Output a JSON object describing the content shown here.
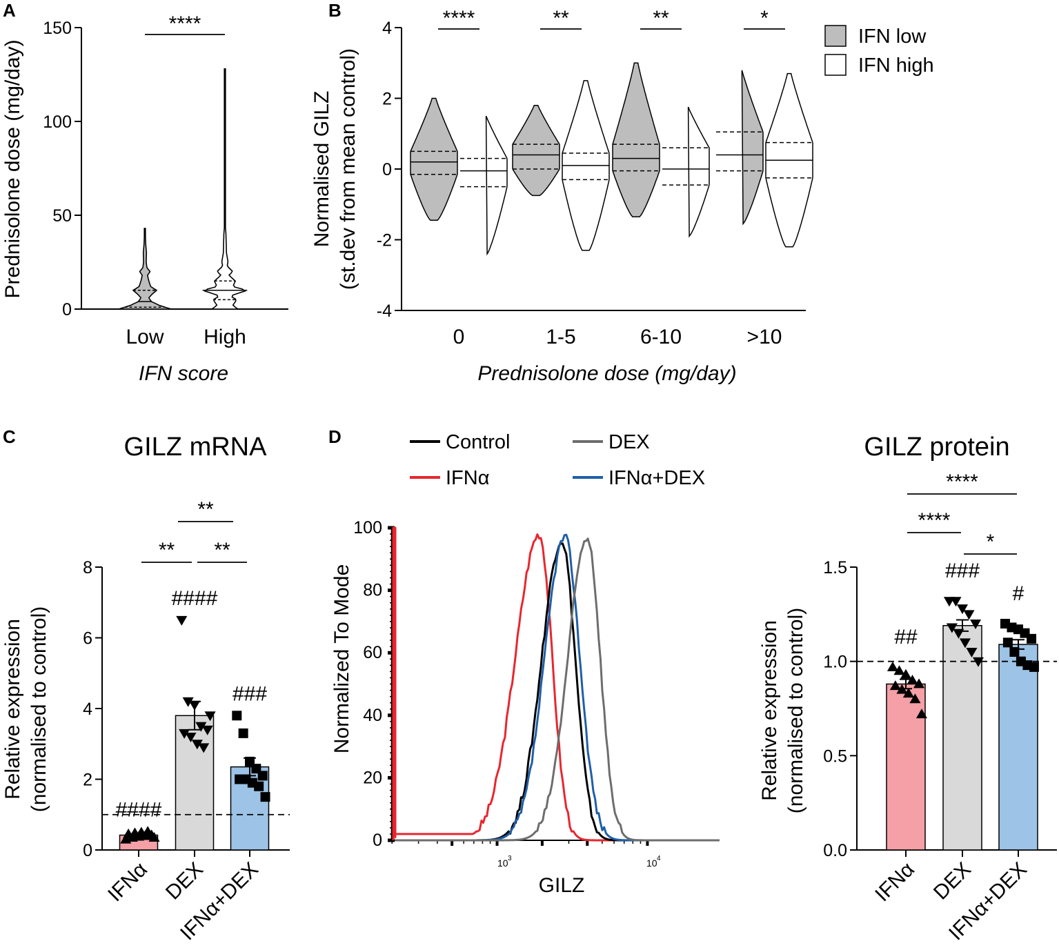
{
  "panels": {
    "a": {
      "letter": "A",
      "ylabel": "Prednisolone dose (mg/day)",
      "xlabel": "IFN score",
      "yticks": [
        0,
        50,
        100,
        150
      ],
      "ylim": [
        0,
        150
      ],
      "categories": [
        "Low",
        "High"
      ],
      "sig": [
        {
          "label": "****",
          "from": 0,
          "to": 1,
          "y": 146
        }
      ],
      "violins": [
        {
          "name": "Low",
          "fill": "#bdbdbd",
          "min": 0,
          "max": 43,
          "median": 4,
          "q1": 1,
          "q3": 10,
          "density": [
            [
              0,
              1.0
            ],
            [
              2,
              0.55
            ],
            [
              4,
              0.25
            ],
            [
              6,
              0.15
            ],
            [
              8,
              0.28
            ],
            [
              10,
              0.45
            ],
            [
              12,
              0.22
            ],
            [
              15,
              0.15
            ],
            [
              18,
              0.1
            ],
            [
              20,
              0.2
            ],
            [
              22,
              0.08
            ],
            [
              25,
              0.05
            ],
            [
              30,
              0.06
            ],
            [
              35,
              0.03
            ],
            [
              43,
              0.01
            ]
          ]
        },
        {
          "name": "High",
          "fill": "#ffffff",
          "min": 0,
          "max": 128,
          "median": 10,
          "q1": 5,
          "q3": 15,
          "density": [
            [
              0,
              0.5
            ],
            [
              2,
              0.3
            ],
            [
              5,
              0.45
            ],
            [
              7,
              0.2
            ],
            [
              10,
              0.85
            ],
            [
              12,
              0.3
            ],
            [
              15,
              0.4
            ],
            [
              18,
              0.15
            ],
            [
              20,
              0.3
            ],
            [
              23,
              0.08
            ],
            [
              25,
              0.12
            ],
            [
              30,
              0.06
            ],
            [
              35,
              0.05
            ],
            [
              40,
              0.04
            ],
            [
              45,
              0.01
            ],
            [
              60,
              0.01
            ],
            [
              90,
              0.01
            ],
            [
              128,
              0.01
            ]
          ]
        }
      ]
    },
    "b": {
      "letter": "B",
      "ylabel_line1": "Normalised GILZ",
      "ylabel_line2": "(st.dev from mean control)",
      "xlabel": "Prednisolone dose (mg/day)",
      "yticks": [
        -4,
        -2,
        0,
        2,
        4
      ],
      "ylim": [
        -4,
        4
      ],
      "categories": [
        "0",
        "1-5",
        "6-10",
        ">10"
      ],
      "legend": [
        {
          "label": "IFN low",
          "fill": "#bdbdbd"
        },
        {
          "label": "IFN high",
          "fill": "#ffffff"
        }
      ],
      "sig": [
        "****",
        "**",
        "**",
        "*"
      ],
      "groups": [
        {
          "low": {
            "min": -1.45,
            "max": 2.0,
            "median": 0.2,
            "q1": -0.15,
            "q3": 0.5
          },
          "high": {
            "min": -2.4,
            "max": 1.55,
            "median": -0.05,
            "q1": -0.5,
            "q3": 0.3
          }
        },
        {
          "low": {
            "min": -0.75,
            "max": 1.8,
            "median": 0.4,
            "q1": 0.0,
            "q3": 0.7
          },
          "high": {
            "min": -2.3,
            "max": 2.5,
            "median": 0.1,
            "q1": -0.3,
            "q3": 0.45
          }
        },
        {
          "low": {
            "min": -1.35,
            "max": 3.0,
            "median": 0.3,
            "q1": -0.05,
            "q3": 0.7
          },
          "high": {
            "min": -1.9,
            "max": 1.8,
            "median": 0.0,
            "q1": -0.45,
            "q3": 0.6
          }
        },
        {
          "low": {
            "min": -1.55,
            "max": 2.85,
            "median": 0.4,
            "q1": -0.05,
            "q3": 1.05
          },
          "high": {
            "min": -2.2,
            "max": 2.7,
            "median": 0.25,
            "q1": -0.25,
            "q3": 0.75
          }
        }
      ]
    },
    "c": {
      "letter": "C",
      "title": "GILZ mRNA",
      "ylabel_line1": "Relative expression",
      "ylabel_line2": "(normalised to control)",
      "yticks": [
        0,
        2,
        4,
        6,
        8
      ],
      "ylim": [
        0,
        8
      ],
      "reference": 1.0,
      "bars": [
        {
          "label": "IFNα",
          "value": 0.42,
          "sem": 0.05,
          "color": "#f4a0a6",
          "hash": "####",
          "marker": "triangle-up",
          "points": [
            0.3,
            0.35,
            0.38,
            0.4,
            0.42,
            0.45,
            0.48,
            0.5,
            0.52,
            0.35
          ]
        },
        {
          "label": "DEX",
          "value": 3.8,
          "sem": 0.4,
          "color": "#d9d9d9",
          "hash": "####",
          "marker": "triangle-down",
          "points": [
            6.5,
            4.2,
            4.1,
            3.5,
            3.4,
            3.3,
            3.2,
            3.0,
            2.9,
            3.8
          ]
        },
        {
          "label": "IFNα+DEX",
          "value": 2.35,
          "sem": 0.25,
          "color": "#9dc3e6",
          "hash": "###",
          "marker": "square",
          "points": [
            3.8,
            3.3,
            2.5,
            2.3,
            2.1,
            2.0,
            2.0,
            1.9,
            1.8,
            1.5
          ]
        }
      ],
      "sig": [
        {
          "label": "**",
          "from": 1,
          "to": 2,
          "level": 0
        },
        {
          "label": "**",
          "from": 0,
          "to": 1,
          "level": 1
        },
        {
          "label": "**",
          "from": 1,
          "to": 2,
          "level": 1
        }
      ]
    },
    "d": {
      "letter": "D",
      "ylabel": "Normalized To Mode",
      "xlabel": "GILZ",
      "yticks": [
        0,
        20,
        40,
        60,
        80,
        100
      ],
      "xtick_labels": [
        "10",
        "3",
        "10",
        "4"
      ],
      "legend": [
        {
          "label": "Control",
          "color": "#000000"
        },
        {
          "label": "DEX",
          "color": "#6d6d6d"
        },
        {
          "label": "IFNα",
          "color": "#e8262e"
        },
        {
          "label": "IFNα+DEX",
          "color": "#1f5fa8"
        }
      ],
      "series": [
        {
          "name": "IFNα",
          "color": "#e8262e",
          "peak_log": 3.28,
          "width_left": 0.33,
          "width_right": 0.18,
          "peak": 98,
          "baseline": 2
        },
        {
          "name": "Control",
          "color": "#000000",
          "peak_log": 3.43,
          "width_left": 0.28,
          "width_right": 0.19,
          "peak": 96,
          "baseline": 0
        },
        {
          "name": "IFNα+DEX",
          "color": "#1f5fa8",
          "peak_log": 3.45,
          "width_left": 0.28,
          "width_right": 0.21,
          "peak": 97,
          "baseline": 0
        },
        {
          "name": "DEX",
          "color": "#6d6d6d",
          "peak_log": 3.6,
          "width_left": 0.27,
          "width_right": 0.18,
          "peak": 97,
          "baseline": 0
        }
      ]
    },
    "e": {
      "title": "GILZ protein",
      "ylabel_line1": "Relative expression",
      "ylabel_line2": "(normalised to control)",
      "yticks": [
        "0.0",
        "0.5",
        "1.0",
        "1.5"
      ],
      "ylim": [
        0,
        1.5
      ],
      "reference": 1.0,
      "bars": [
        {
          "label": "IFNα",
          "value": 0.88,
          "sem": 0.025,
          "color": "#f4a0a6",
          "hash": "##",
          "marker": "triangle-up",
          "points": [
            0.97,
            0.95,
            0.93,
            0.9,
            0.88,
            0.87,
            0.85,
            0.83,
            0.8,
            0.72
          ]
        },
        {
          "label": "DEX",
          "value": 1.19,
          "sem": 0.03,
          "color": "#d9d9d9",
          "hash": "###",
          "marker": "triangle-down",
          "points": [
            1.32,
            1.32,
            1.28,
            1.25,
            1.2,
            1.18,
            1.15,
            1.1,
            1.05,
            1.0
          ]
        },
        {
          "label": "IFNα+DEX",
          "value": 1.09,
          "sem": 0.025,
          "color": "#9dc3e6",
          "hash": "#",
          "marker": "square",
          "points": [
            1.2,
            1.18,
            1.17,
            1.15,
            1.12,
            1.1,
            1.05,
            1.0,
            0.98,
            0.97
          ]
        }
      ],
      "sig": [
        {
          "label": "****",
          "from": 0,
          "to": 2,
          "level": 2
        },
        {
          "label": "****",
          "from": 0,
          "to": 1,
          "level": 1
        },
        {
          "label": "*",
          "from": 1,
          "to": 2,
          "level": 0
        }
      ]
    }
  }
}
